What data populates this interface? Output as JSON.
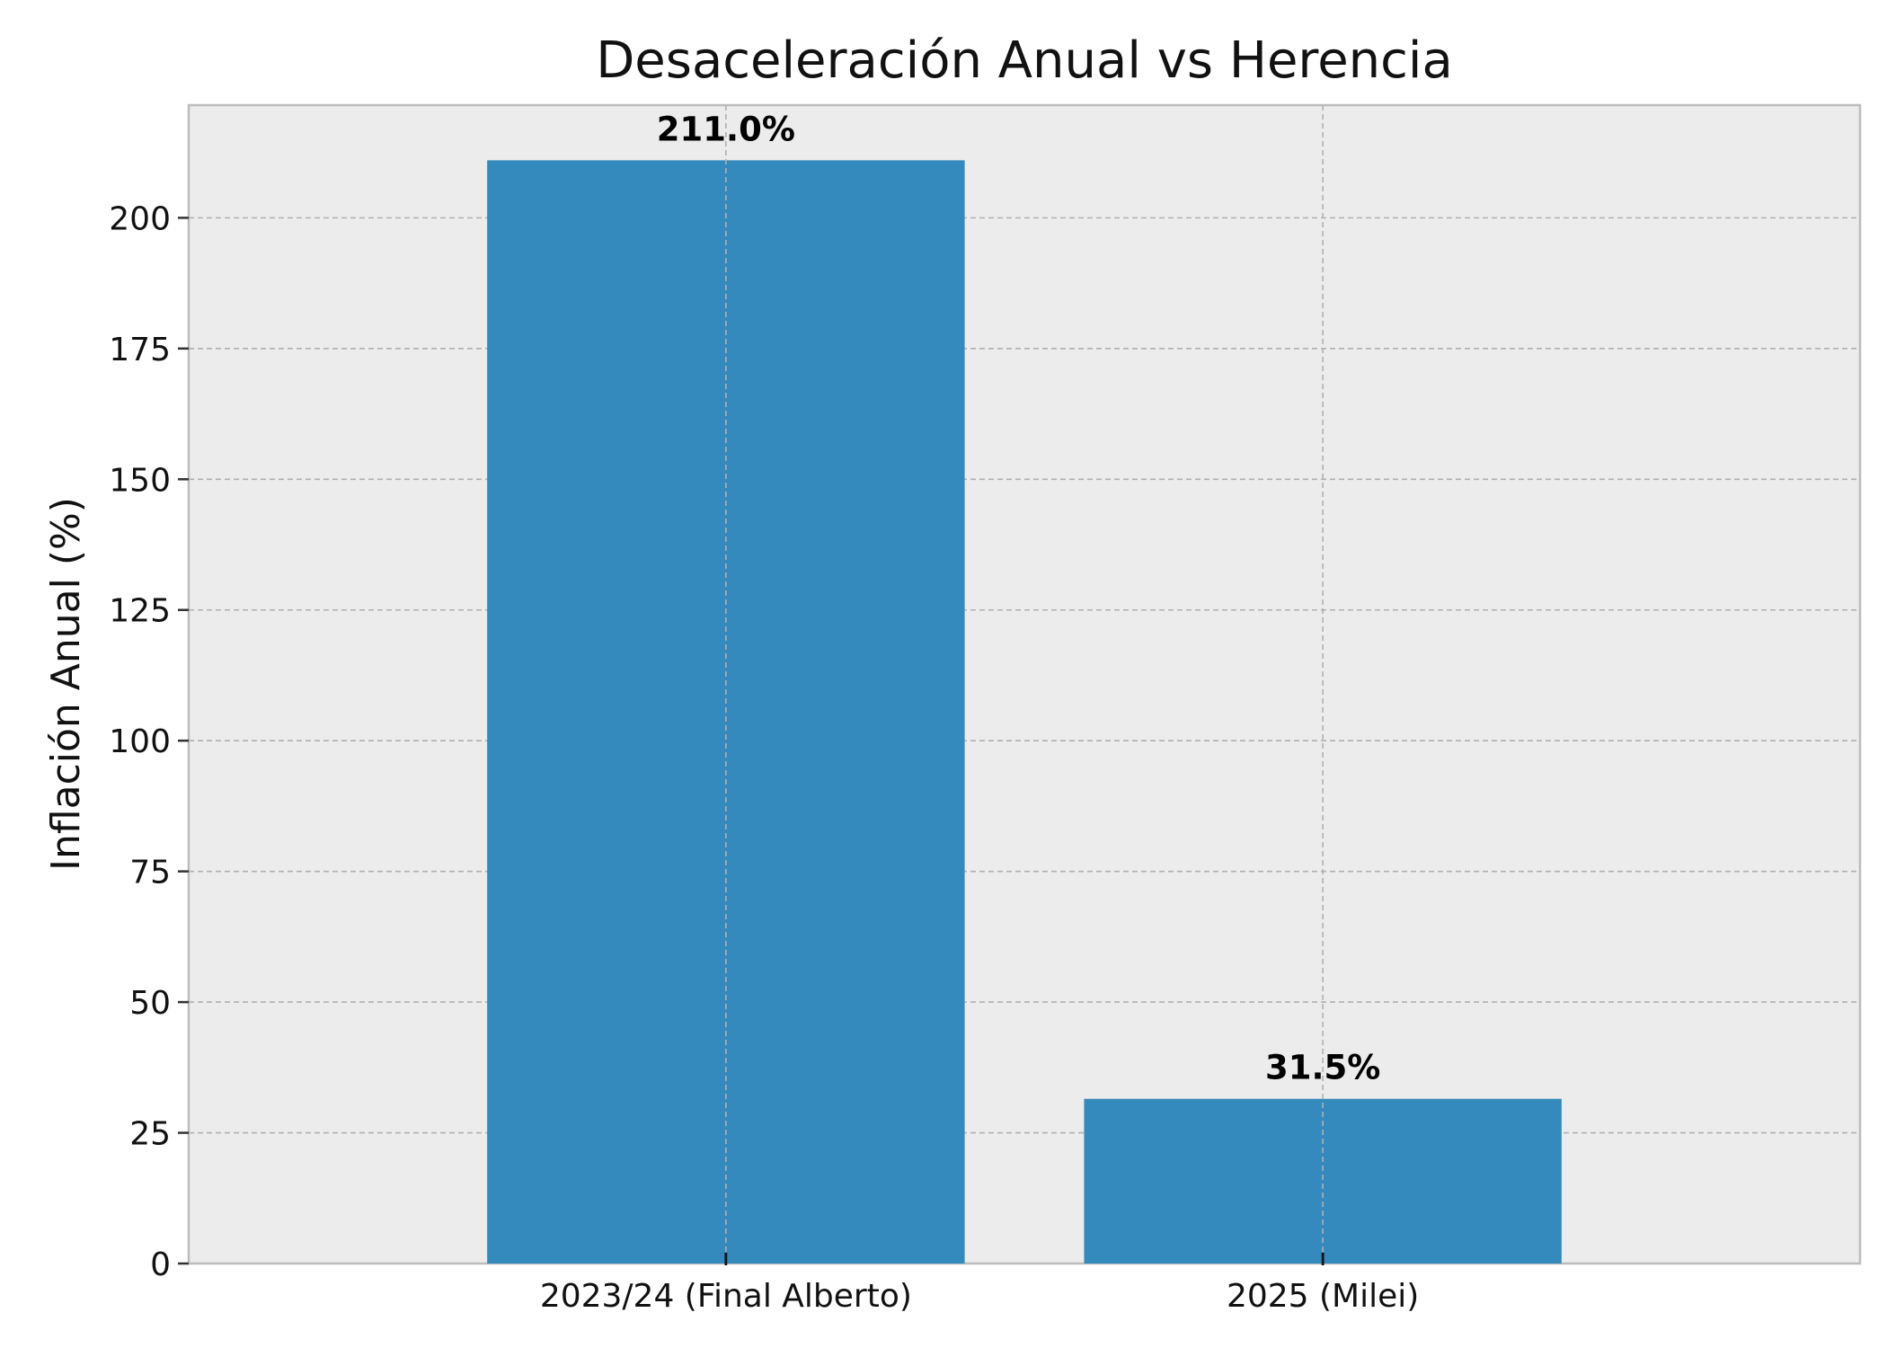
{
  "chart_data": {
    "type": "bar",
    "title": "Desaceleración Anual vs Herencia",
    "xlabel": "",
    "ylabel": "Inflación Anual (%)",
    "categories": [
      "2023/24 (Final Alberto)",
      "2025 (Milei)"
    ],
    "values": [
      211.0,
      31.5
    ],
    "value_labels": [
      "211.0%",
      "31.5%"
    ],
    "ylim": [
      0,
      221.55
    ],
    "yticks": [
      0,
      25,
      50,
      75,
      100,
      125,
      150,
      175,
      200
    ],
    "ytick_labels": [
      "0",
      "25",
      "50",
      "75",
      "100",
      "125",
      "150",
      "175",
      "200"
    ],
    "grid": true,
    "legend": "none",
    "bar_color": "#348abd",
    "plot_background": "#ececec",
    "grid_color": "#b0b0b0"
  }
}
